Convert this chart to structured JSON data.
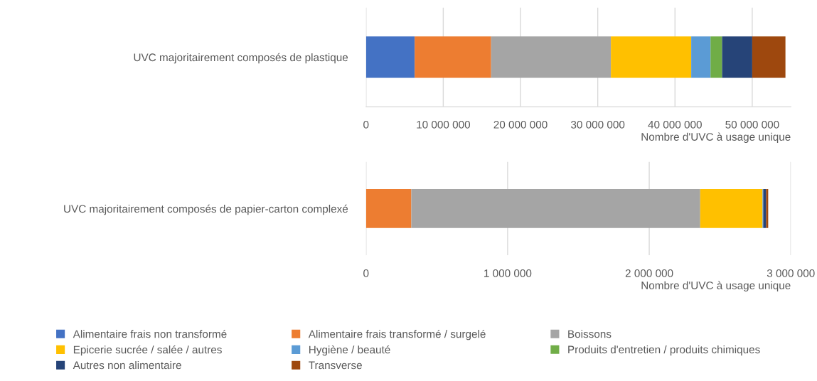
{
  "chart_data": [
    {
      "type": "bar",
      "orientation": "horizontal",
      "stacked": true,
      "categories": [
        "UVC majoritairement composés de plastique"
      ],
      "xlabel": "Nombre d'UVC à usage unique",
      "xlim": [
        0,
        55000000
      ],
      "xticks": [
        {
          "value": 0,
          "label": "0"
        },
        {
          "value": 10000000,
          "label": "10 000 000"
        },
        {
          "value": 20000000,
          "label": "20 000 000"
        },
        {
          "value": 30000000,
          "label": "30 000 000"
        },
        {
          "value": 40000000,
          "label": "40 000 000"
        },
        {
          "value": 50000000,
          "label": "50 000 000"
        }
      ],
      "grid": "x",
      "legend": "bottom",
      "series": [
        {
          "name": "Alimentaire frais non transformé",
          "color": "#4472c4",
          "values": [
            6300000
          ]
        },
        {
          "name": "Alimentaire frais transformé / surgelé",
          "color": "#ed7d31",
          "values": [
            9900000
          ]
        },
        {
          "name": "Boissons",
          "color": "#a5a5a5",
          "values": [
            15500000
          ]
        },
        {
          "name": "Epicerie sucrée / salée / autres",
          "color": "#ffc000",
          "values": [
            10400000
          ]
        },
        {
          "name": "Hygiène / beauté",
          "color": "#5b9bd5",
          "values": [
            2500000
          ]
        },
        {
          "name": "Produits d'entretien / produits chimiques",
          "color": "#70ad47",
          "values": [
            1500000
          ]
        },
        {
          "name": "Autres non alimentaire",
          "color": "#264478",
          "values": [
            3900000
          ]
        },
        {
          "name": "Transverse",
          "color": "#9e480e",
          "values": [
            4300000
          ]
        }
      ]
    },
    {
      "type": "bar",
      "orientation": "horizontal",
      "stacked": true,
      "categories": [
        "UVC majoritairement composés de papier-carton complexé"
      ],
      "xlabel": "Nombre d'UVC à usage unique",
      "xlim": [
        0,
        3000000
      ],
      "xticks": [
        {
          "value": 0,
          "label": "0"
        },
        {
          "value": 1000000,
          "label": "1 000 000"
        },
        {
          "value": 2000000,
          "label": "2 000 000"
        },
        {
          "value": 3000000,
          "label": "3 000 000"
        }
      ],
      "grid": "x",
      "series": [
        {
          "name": "Alimentaire frais non transformé",
          "color": "#4472c4",
          "values": [
            0
          ]
        },
        {
          "name": "Alimentaire frais transformé / surgelé",
          "color": "#ed7d31",
          "values": [
            320000
          ]
        },
        {
          "name": "Boissons",
          "color": "#a5a5a5",
          "values": [
            2040000
          ]
        },
        {
          "name": "Epicerie sucrée / salée / autres",
          "color": "#ffc000",
          "values": [
            440000
          ]
        },
        {
          "name": "Hygiène / beauté",
          "color": "#5b9bd5",
          "values": [
            5000
          ]
        },
        {
          "name": "Produits d'entretien / produits chimiques",
          "color": "#70ad47",
          "values": [
            0
          ]
        },
        {
          "name": "Autres non alimentaire",
          "color": "#264478",
          "values": [
            20000
          ]
        },
        {
          "name": "Transverse",
          "color": "#9e480e",
          "values": [
            15000
          ]
        }
      ]
    }
  ]
}
